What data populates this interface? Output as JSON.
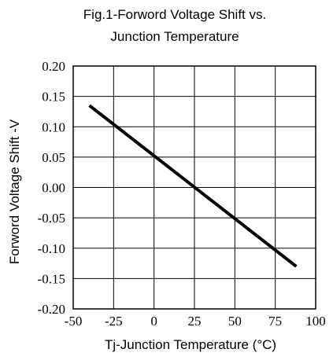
{
  "chart_data": {
    "type": "line",
    "title_line1": "Fig.1-Forword Voltage Shift vs.",
    "title_line2": "Junction Temperature",
    "xlabel": "Tj-Junction Temperature (°C)",
    "ylabel": "Forword Voltage Shift -V",
    "xlim": [
      -50,
      100
    ],
    "ylim": [
      -0.2,
      0.2
    ],
    "x_ticks": [
      -50,
      -25,
      0,
      25,
      50,
      75,
      100
    ],
    "x_tick_labels": [
      "-50",
      "-25",
      "0",
      "25",
      "50",
      "75",
      "100"
    ],
    "y_ticks": [
      0.2,
      0.15,
      0.1,
      0.05,
      0.0,
      -0.05,
      -0.1,
      -0.15,
      -0.2
    ],
    "y_tick_labels": [
      "0.20",
      "0.15",
      "0.10",
      "0.05",
      "0.00",
      "-0.05",
      "-0.10",
      "-0.15",
      "-0.20"
    ],
    "grid": true,
    "series": [
      {
        "x": [
          -40,
          88
        ],
        "y": [
          0.135,
          -0.13
        ],
        "color": "#000000"
      }
    ]
  }
}
